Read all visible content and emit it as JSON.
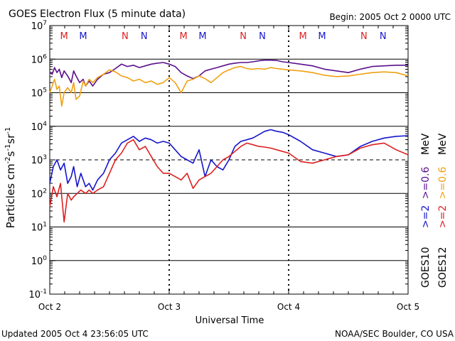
{
  "title": "GOES Electron Flux (5 minute data)",
  "begin": "Begin: 2005 Oct 2 0000 UTC",
  "updated": "Updated 2005 Oct  4 23:56:05 UTC",
  "credit": "NOAA/SEC Boulder, CO USA",
  "chart_data": {
    "type": "line",
    "title": "GOES Electron Flux (5 minute data)",
    "xlabel": "Universal Time",
    "ylabel": "Particles cm-2 s-1 sr-1",
    "x_unit": "days since 2005 Oct 2 0000 UTC",
    "xlim": [
      0,
      3
    ],
    "ylim_log10": [
      -1,
      7
    ],
    "y_scale": "log",
    "x_ticks": [
      {
        "x": 0,
        "label": "Oct 2"
      },
      {
        "x": 1,
        "label": "Oct 3"
      },
      {
        "x": 2,
        "label": "Oct 4"
      },
      {
        "x": 3,
        "label": "Oct 5"
      }
    ],
    "y_ticks": [
      {
        "exp": 7,
        "base": "10",
        "sup": "7"
      },
      {
        "exp": 6,
        "base": "10",
        "sup": "6"
      },
      {
        "exp": 5,
        "base": "10",
        "sup": "5"
      },
      {
        "exp": 4,
        "base": "10",
        "sup": "4"
      },
      {
        "exp": 3,
        "base": "10",
        "sup": "3"
      },
      {
        "exp": 2,
        "base": "10",
        "sup": "2"
      },
      {
        "exp": 1,
        "base": "10",
        "sup": "1"
      },
      {
        "exp": 0,
        "base": "10",
        "sup": "0"
      },
      {
        "exp": -1,
        "base": "10",
        "sup": "-1"
      }
    ],
    "reference_line": {
      "log10": 3,
      "value": 1000,
      "style": "dashed"
    },
    "markers": [
      {
        "x": 0.12,
        "label": "M",
        "color": "#dd2020"
      },
      {
        "x": 0.28,
        "label": "M",
        "color": "#1515cc"
      },
      {
        "x": 0.63,
        "label": "N",
        "color": "#dd2020"
      },
      {
        "x": 0.79,
        "label": "N",
        "color": "#1515cc"
      },
      {
        "x": 1.12,
        "label": "M",
        "color": "#dd2020"
      },
      {
        "x": 1.28,
        "label": "M",
        "color": "#1515cc"
      },
      {
        "x": 1.62,
        "label": "N",
        "color": "#dd2020"
      },
      {
        "x": 1.78,
        "label": "N",
        "color": "#1515cc"
      },
      {
        "x": 2.12,
        "label": "M",
        "color": "#dd2020"
      },
      {
        "x": 2.28,
        "label": "M",
        "color": "#1515cc"
      },
      {
        "x": 2.63,
        "label": "N",
        "color": "#dd2020"
      },
      {
        "x": 2.79,
        "label": "N",
        "color": "#1515cc"
      }
    ],
    "legend": {
      "placement": "right, vertical",
      "col1": {
        "satellite": "GOES10",
        "ge2": ">=2",
        "ge06": ">=0.6",
        "unit": "MeV",
        "colors": {
          "ge2": "#1515cc",
          "ge06": "#5a0f8c"
        }
      },
      "col2": {
        "satellite": "GOES12",
        "ge2": ">=2",
        "ge06": ">=0.6",
        "unit": "MeV",
        "colors": {
          "ge2": "#dd2020",
          "ge06": "#f0a010"
        }
      }
    },
    "series": [
      {
        "name": "GOES10 >=0.6 MeV",
        "color": "#5a0f8c",
        "x": [
          0,
          0.02,
          0.04,
          0.06,
          0.08,
          0.1,
          0.12,
          0.15,
          0.18,
          0.2,
          0.22,
          0.25,
          0.28,
          0.3,
          0.33,
          0.36,
          0.4,
          0.45,
          0.5,
          0.55,
          0.6,
          0.65,
          0.7,
          0.75,
          0.8,
          0.85,
          0.9,
          0.95,
          1.0,
          1.05,
          1.1,
          1.15,
          1.2,
          1.25,
          1.3,
          1.35,
          1.4,
          1.45,
          1.5,
          1.55,
          1.6,
          1.65,
          1.7,
          1.75,
          1.8,
          1.85,
          1.9,
          1.95,
          2.0,
          2.1,
          2.2,
          2.3,
          2.4,
          2.5,
          2.6,
          2.7,
          2.8,
          2.9,
          3.0
        ],
        "log10_values": [
          5.6,
          5.55,
          5.75,
          5.6,
          5.7,
          5.45,
          5.65,
          5.5,
          5.3,
          5.65,
          5.5,
          5.3,
          5.4,
          5.2,
          5.35,
          5.2,
          5.4,
          5.55,
          5.6,
          5.72,
          5.85,
          5.78,
          5.82,
          5.75,
          5.8,
          5.85,
          5.88,
          5.9,
          5.85,
          5.78,
          5.6,
          5.5,
          5.42,
          5.5,
          5.65,
          5.7,
          5.75,
          5.8,
          5.85,
          5.88,
          5.9,
          5.9,
          5.92,
          5.95,
          5.97,
          5.97,
          5.96,
          5.92,
          5.9,
          5.85,
          5.8,
          5.7,
          5.65,
          5.6,
          5.7,
          5.78,
          5.8,
          5.82,
          5.82
        ]
      },
      {
        "name": "GOES12 >=0.6 MeV",
        "color": "#f0a010",
        "x": [
          0,
          0.02,
          0.04,
          0.06,
          0.08,
          0.1,
          0.12,
          0.15,
          0.18,
          0.2,
          0.22,
          0.25,
          0.28,
          0.3,
          0.33,
          0.36,
          0.4,
          0.45,
          0.5,
          0.55,
          0.6,
          0.65,
          0.7,
          0.75,
          0.8,
          0.85,
          0.9,
          0.95,
          1.0,
          1.05,
          1.1,
          1.15,
          1.2,
          1.25,
          1.3,
          1.35,
          1.4,
          1.45,
          1.5,
          1.55,
          1.6,
          1.65,
          1.7,
          1.75,
          1.8,
          1.85,
          1.9,
          1.95,
          2.0,
          2.1,
          2.2,
          2.3,
          2.4,
          2.5,
          2.6,
          2.7,
          2.8,
          2.9,
          3.0
        ],
        "log10_values": [
          5.0,
          5.2,
          5.4,
          5.1,
          5.2,
          4.6,
          5.0,
          5.15,
          5.0,
          5.3,
          4.8,
          4.9,
          5.35,
          5.2,
          5.4,
          5.3,
          5.45,
          5.55,
          5.68,
          5.62,
          5.5,
          5.45,
          5.35,
          5.4,
          5.3,
          5.35,
          5.25,
          5.3,
          5.45,
          5.3,
          5.0,
          5.35,
          5.4,
          5.5,
          5.42,
          5.3,
          5.45,
          5.6,
          5.68,
          5.75,
          5.78,
          5.72,
          5.7,
          5.72,
          5.7,
          5.75,
          5.72,
          5.7,
          5.68,
          5.65,
          5.6,
          5.52,
          5.48,
          5.5,
          5.55,
          5.6,
          5.62,
          5.6,
          5.5
        ]
      },
      {
        "name": "GOES10 >=2 MeV",
        "color": "#1515cc",
        "x": [
          0,
          0.03,
          0.06,
          0.09,
          0.12,
          0.15,
          0.18,
          0.2,
          0.23,
          0.26,
          0.3,
          0.33,
          0.36,
          0.4,
          0.45,
          0.5,
          0.55,
          0.6,
          0.65,
          0.7,
          0.75,
          0.8,
          0.85,
          0.9,
          0.95,
          1.0,
          1.05,
          1.1,
          1.15,
          1.2,
          1.25,
          1.3,
          1.35,
          1.4,
          1.45,
          1.5,
          1.55,
          1.6,
          1.65,
          1.7,
          1.75,
          1.8,
          1.85,
          1.9,
          1.95,
          2.0,
          2.1,
          2.2,
          2.3,
          2.4,
          2.5,
          2.6,
          2.7,
          2.8,
          2.9,
          3.0
        ],
        "log10_values": [
          2.3,
          2.8,
          3.0,
          2.7,
          2.9,
          2.3,
          2.5,
          2.8,
          2.2,
          2.6,
          2.2,
          2.3,
          2.1,
          2.4,
          2.6,
          3.0,
          3.2,
          3.5,
          3.6,
          3.7,
          3.55,
          3.65,
          3.6,
          3.5,
          3.55,
          3.5,
          3.3,
          3.1,
          3.0,
          2.9,
          3.3,
          2.5,
          3.0,
          2.8,
          2.7,
          3.0,
          3.4,
          3.55,
          3.6,
          3.65,
          3.75,
          3.85,
          3.9,
          3.85,
          3.82,
          3.75,
          3.55,
          3.3,
          3.2,
          3.1,
          3.15,
          3.4,
          3.55,
          3.65,
          3.7,
          3.72
        ]
      },
      {
        "name": "GOES12 >=2 MeV",
        "color": "#dd2020",
        "x": [
          0,
          0.03,
          0.06,
          0.09,
          0.12,
          0.15,
          0.18,
          0.2,
          0.23,
          0.26,
          0.3,
          0.33,
          0.36,
          0.4,
          0.45,
          0.5,
          0.55,
          0.6,
          0.65,
          0.7,
          0.75,
          0.8,
          0.85,
          0.9,
          0.95,
          1.0,
          1.05,
          1.1,
          1.15,
          1.2,
          1.25,
          1.3,
          1.35,
          1.4,
          1.45,
          1.5,
          1.55,
          1.6,
          1.65,
          1.7,
          1.75,
          1.8,
          1.85,
          1.9,
          1.95,
          2.0,
          2.1,
          2.2,
          2.3,
          2.4,
          2.5,
          2.6,
          2.7,
          2.8,
          2.9,
          3.0
        ],
        "log10_values": [
          1.6,
          2.2,
          1.9,
          2.3,
          1.15,
          2.0,
          1.8,
          1.9,
          2.0,
          2.1,
          2.0,
          2.1,
          2.0,
          2.1,
          2.2,
          2.6,
          3.0,
          3.2,
          3.5,
          3.6,
          3.3,
          3.4,
          3.1,
          2.8,
          2.6,
          2.6,
          2.5,
          2.4,
          2.6,
          2.15,
          2.4,
          2.5,
          2.6,
          2.8,
          3.0,
          3.1,
          3.25,
          3.4,
          3.5,
          3.45,
          3.4,
          3.38,
          3.35,
          3.3,
          3.25,
          3.2,
          2.95,
          2.9,
          3.0,
          3.1,
          3.15,
          3.35,
          3.45,
          3.5,
          3.3,
          3.15
        ]
      }
    ]
  }
}
